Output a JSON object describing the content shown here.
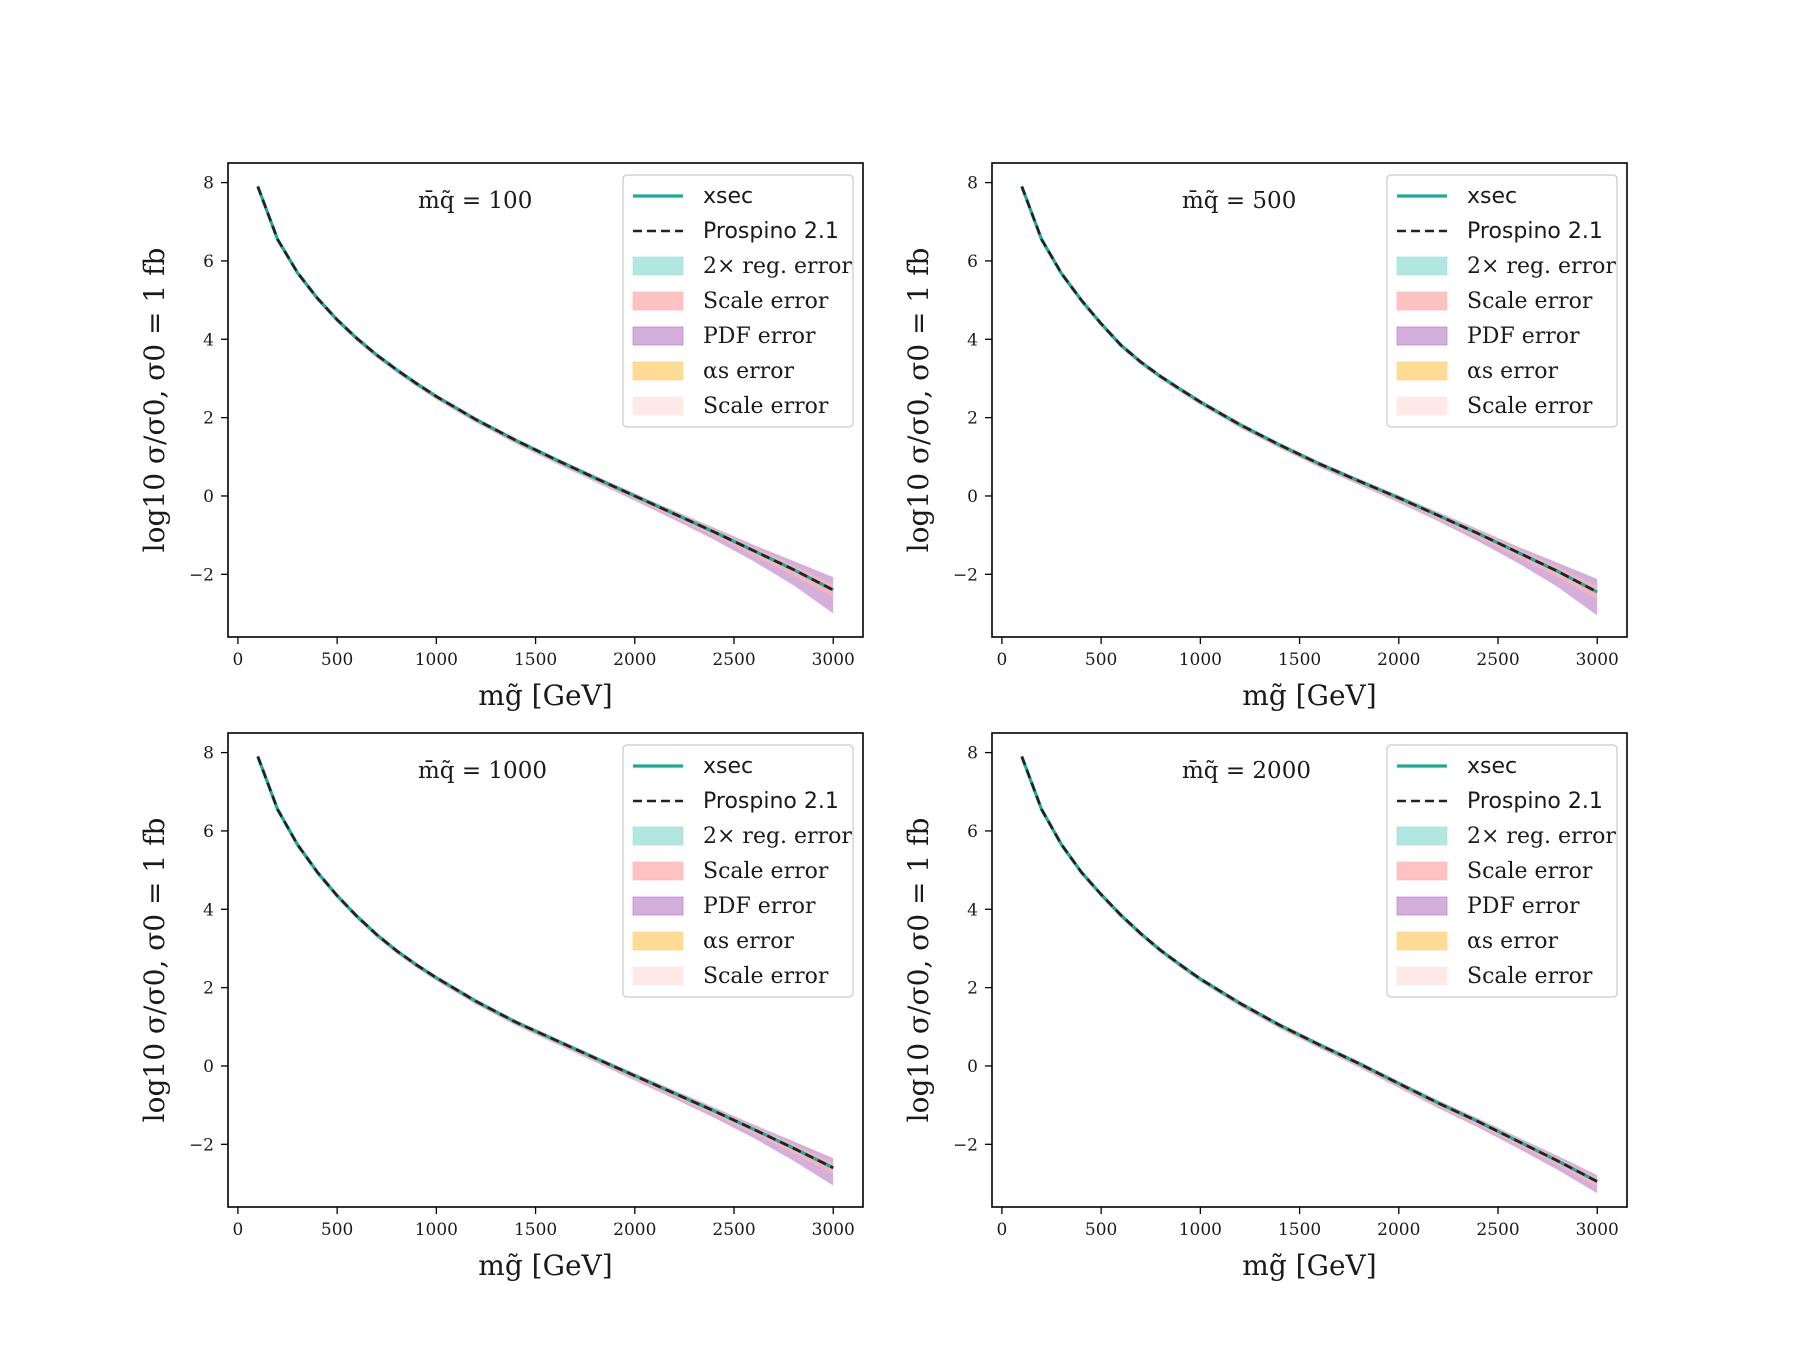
{
  "figure": {
    "type": "2x2 panel line plot with uncertainty bands"
  },
  "colors": {
    "xsec": "#1aab9b",
    "prospino": "#222222",
    "reg_error": "#9fe0d8",
    "scale_error": "#ffb3b3",
    "pdf_error": "#b36ec0",
    "alpha_error": "#ffd27a",
    "scale_error_2": "#ffe6e6"
  },
  "legend": {
    "entries": [
      {
        "key": "xsec",
        "label": "xsec",
        "kind": "line",
        "style": "solid",
        "font": "sans"
      },
      {
        "key": "prospino",
        "label": "Prospino 2.1",
        "kind": "line",
        "style": "dashed",
        "font": "sans"
      },
      {
        "key": "reg_error",
        "label": "2× reg. error",
        "kind": "patch",
        "font": "serif"
      },
      {
        "key": "scale_error",
        "label": "Scale error",
        "kind": "patch",
        "font": "serif"
      },
      {
        "key": "pdf_error",
        "label": "PDF error",
        "kind": "patch",
        "font": "serif"
      },
      {
        "key": "alpha_error",
        "label": "αs error",
        "kind": "patch",
        "font": "serif"
      },
      {
        "key": "scale_error_2",
        "label": "Scale error",
        "kind": "patch",
        "font": "serif"
      }
    ]
  },
  "chart_data": [
    {
      "type": "line",
      "panel_label": "m̄q̃ = 100",
      "xlabel": "mg̃ [GeV]",
      "ylabel": "log10 σ/σ0,  σ0 = 1 fb",
      "xlim": [
        -50,
        3150
      ],
      "ylim": [
        -3.6,
        8.5
      ],
      "xticks": [
        0,
        500,
        1000,
        1500,
        2000,
        2500,
        3000
      ],
      "yticks": [
        -2,
        0,
        2,
        4,
        6,
        8
      ],
      "x": [
        100,
        200,
        300,
        400,
        500,
        600,
        700,
        800,
        900,
        1000,
        1200,
        1400,
        1600,
        1800,
        2000,
        2200,
        2400,
        2600,
        2800,
        3000
      ],
      "series": [
        {
          "name": "xsec",
          "values": [
            7.9,
            6.55,
            5.7,
            5.05,
            4.5,
            4.02,
            3.6,
            3.22,
            2.87,
            2.54,
            1.95,
            1.42,
            0.93,
            0.46,
            0.0,
            -0.46,
            -0.92,
            -1.4,
            -1.88,
            -2.4
          ]
        },
        {
          "name": "Prospino 2.1",
          "values": [
            7.9,
            6.55,
            5.7,
            5.05,
            4.5,
            4.02,
            3.6,
            3.22,
            2.87,
            2.54,
            1.95,
            1.42,
            0.93,
            0.46,
            0.0,
            -0.46,
            -0.92,
            -1.4,
            -1.88,
            -2.4
          ]
        }
      ],
      "pdf_band_halfwidth": [
        0.04,
        0.04,
        0.04,
        0.04,
        0.05,
        0.05,
        0.05,
        0.05,
        0.06,
        0.06,
        0.07,
        0.08,
        0.09,
        0.1,
        0.12,
        0.15,
        0.2,
        0.27,
        0.4,
        0.6
      ]
    },
    {
      "type": "line",
      "panel_label": "m̄q̃ = 500",
      "xlabel": "mg̃ [GeV]",
      "ylabel": "log10 σ/σ0,  σ0 = 1 fb",
      "xlim": [
        -50,
        3150
      ],
      "ylim": [
        -3.6,
        8.5
      ],
      "xticks": [
        0,
        500,
        1000,
        1500,
        2000,
        2500,
        3000
      ],
      "yticks": [
        -2,
        0,
        2,
        4,
        6,
        8
      ],
      "x": [
        100,
        200,
        300,
        400,
        500,
        600,
        700,
        800,
        900,
        1000,
        1200,
        1400,
        1600,
        1800,
        2000,
        2200,
        2400,
        2600,
        2800,
        3000
      ],
      "series": [
        {
          "name": "xsec",
          "values": [
            7.9,
            6.55,
            5.68,
            5.0,
            4.4,
            3.85,
            3.42,
            3.05,
            2.72,
            2.4,
            1.82,
            1.3,
            0.82,
            0.38,
            -0.05,
            -0.5,
            -0.96,
            -1.44,
            -1.92,
            -2.45
          ]
        },
        {
          "name": "Prospino 2.1",
          "values": [
            7.9,
            6.55,
            5.68,
            5.0,
            4.4,
            3.85,
            3.42,
            3.05,
            2.72,
            2.4,
            1.82,
            1.3,
            0.82,
            0.38,
            -0.05,
            -0.5,
            -0.96,
            -1.44,
            -1.92,
            -2.45
          ]
        }
      ],
      "pdf_band_halfwidth": [
        0.04,
        0.04,
        0.04,
        0.04,
        0.05,
        0.05,
        0.05,
        0.05,
        0.06,
        0.06,
        0.07,
        0.08,
        0.09,
        0.1,
        0.12,
        0.15,
        0.2,
        0.27,
        0.4,
        0.6
      ]
    },
    {
      "type": "line",
      "panel_label": "m̄q̃ = 1000",
      "xlabel": "mg̃ [GeV]",
      "ylabel": "log10 σ/σ0,  σ0 = 1 fb",
      "xlim": [
        -50,
        3150
      ],
      "ylim": [
        -3.6,
        8.5
      ],
      "xticks": [
        0,
        500,
        1000,
        1500,
        2000,
        2500,
        3000
      ],
      "yticks": [
        -2,
        0,
        2,
        4,
        6,
        8
      ],
      "x": [
        100,
        200,
        300,
        400,
        500,
        600,
        700,
        800,
        900,
        1000,
        1200,
        1400,
        1600,
        1800,
        2000,
        2200,
        2400,
        2600,
        2800,
        3000
      ],
      "series": [
        {
          "name": "xsec",
          "values": [
            7.9,
            6.55,
            5.65,
            4.95,
            4.35,
            3.82,
            3.35,
            2.94,
            2.58,
            2.25,
            1.65,
            1.12,
            0.66,
            0.2,
            -0.25,
            -0.7,
            -1.15,
            -1.62,
            -2.1,
            -2.6
          ]
        },
        {
          "name": "Prospino 2.1",
          "values": [
            7.9,
            6.55,
            5.65,
            4.95,
            4.35,
            3.82,
            3.35,
            2.94,
            2.58,
            2.25,
            1.65,
            1.12,
            0.66,
            0.2,
            -0.25,
            -0.7,
            -1.15,
            -1.62,
            -2.1,
            -2.6
          ]
        }
      ],
      "pdf_band_halfwidth": [
        0.04,
        0.04,
        0.04,
        0.04,
        0.05,
        0.05,
        0.05,
        0.05,
        0.06,
        0.06,
        0.07,
        0.08,
        0.09,
        0.1,
        0.12,
        0.14,
        0.17,
        0.22,
        0.32,
        0.45
      ]
    },
    {
      "type": "line",
      "panel_label": "m̄q̃ = 2000",
      "xlabel": "mg̃ [GeV]",
      "ylabel": "log10 σ/σ0,  σ0 = 1 fb",
      "xlim": [
        -50,
        3150
      ],
      "ylim": [
        -3.6,
        8.5
      ],
      "xticks": [
        0,
        500,
        1000,
        1500,
        2000,
        2500,
        3000
      ],
      "yticks": [
        -2,
        0,
        2,
        4,
        6,
        8
      ],
      "x": [
        100,
        200,
        300,
        400,
        500,
        600,
        700,
        800,
        900,
        1000,
        1200,
        1400,
        1600,
        1800,
        2000,
        2200,
        2400,
        2600,
        2800,
        3000
      ],
      "series": [
        {
          "name": "xsec",
          "values": [
            7.9,
            6.55,
            5.65,
            4.95,
            4.38,
            3.85,
            3.38,
            2.95,
            2.58,
            2.22,
            1.6,
            1.04,
            0.54,
            0.06,
            -0.45,
            -0.95,
            -1.42,
            -1.92,
            -2.42,
            -2.95
          ]
        },
        {
          "name": "Prospino 2.1",
          "values": [
            7.9,
            6.55,
            5.65,
            4.95,
            4.38,
            3.85,
            3.38,
            2.95,
            2.58,
            2.22,
            1.6,
            1.04,
            0.54,
            0.06,
            -0.45,
            -0.95,
            -1.42,
            -1.92,
            -2.42,
            -2.95
          ]
        }
      ],
      "pdf_band_halfwidth": [
        0.04,
        0.04,
        0.04,
        0.04,
        0.05,
        0.05,
        0.05,
        0.05,
        0.06,
        0.06,
        0.07,
        0.08,
        0.09,
        0.1,
        0.11,
        0.13,
        0.15,
        0.18,
        0.23,
        0.3
      ]
    }
  ]
}
